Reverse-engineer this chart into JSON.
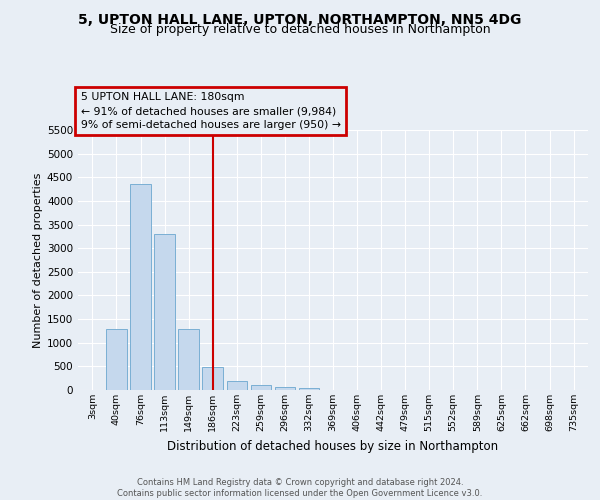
{
  "title1": "5, UPTON HALL LANE, UPTON, NORTHAMPTON, NN5 4DG",
  "title2": "Size of property relative to detached houses in Northampton",
  "xlabel": "Distribution of detached houses by size in Northampton",
  "ylabel": "Number of detached properties",
  "categories": [
    "3sqm",
    "40sqm",
    "76sqm",
    "113sqm",
    "149sqm",
    "186sqm",
    "223sqm",
    "259sqm",
    "296sqm",
    "332sqm",
    "369sqm",
    "406sqm",
    "442sqm",
    "479sqm",
    "515sqm",
    "552sqm",
    "589sqm",
    "625sqm",
    "662sqm",
    "698sqm",
    "735sqm"
  ],
  "values": [
    0,
    1280,
    4350,
    3300,
    1300,
    480,
    200,
    100,
    60,
    40,
    0,
    0,
    0,
    0,
    0,
    0,
    0,
    0,
    0,
    0,
    0
  ],
  "bar_color": "#c5d8ed",
  "bar_edge_color": "#7aafd4",
  "vline_x": 5,
  "vline_color": "#cc0000",
  "annotation_line1": "5 UPTON HALL LANE: 180sqm",
  "annotation_line2": "← 91% of detached houses are smaller (9,984)",
  "annotation_line3": "9% of semi-detached houses are larger (950) →",
  "annotation_box_color": "#cc0000",
  "ylim": [
    0,
    5500
  ],
  "yticks": [
    0,
    500,
    1000,
    1500,
    2000,
    2500,
    3000,
    3500,
    4000,
    4500,
    5000,
    5500
  ],
  "footnote1": "Contains HM Land Registry data © Crown copyright and database right 2024.",
  "footnote2": "Contains public sector information licensed under the Open Government Licence v3.0.",
  "bg_color": "#e8eef5",
  "plot_bg_color": "#e8eef5",
  "grid_color": "#ffffff",
  "title1_fontsize": 10,
  "title2_fontsize": 9,
  "xlabel_fontsize": 8.5,
  "ylabel_fontsize": 8
}
